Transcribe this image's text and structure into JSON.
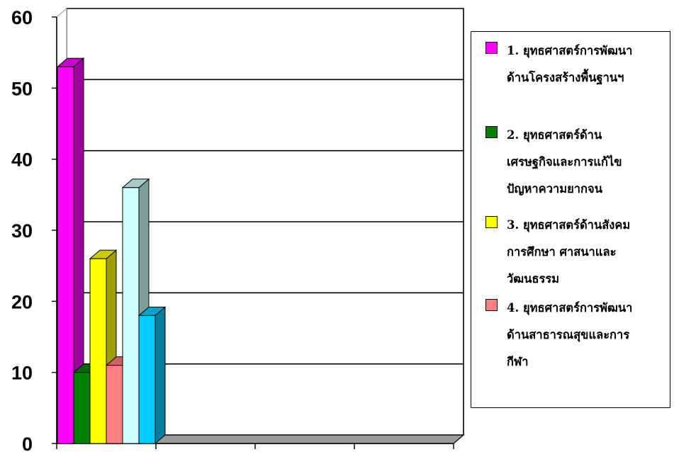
{
  "chart_data": {
    "type": "bar",
    "categories": [
      ""
    ],
    "ylim": [
      0,
      60
    ],
    "yticks": [
      "0",
      "10",
      "20",
      "30",
      "40",
      "50",
      "60"
    ],
    "grid": true,
    "legend_position": "right",
    "series": [
      {
        "name": "1. ยุทธศาสตร์การพัฒนาด้านโครงสร้างพื้นฐานฯ",
        "color": "#ff00ff",
        "values": [
          53
        ]
      },
      {
        "name": "2. ยุทธศาสตร์ด้านเศรษฐกิจและการแก้ไขปัญหาความยากจน",
        "color": "#008000",
        "values": [
          10
        ]
      },
      {
        "name": "3. ยุทธศาสตร์ด้านสังคมการศึกษา ศาสนาและวัฒนธรรม",
        "color": "#ffff00",
        "values": [
          26
        ]
      },
      {
        "name": "4. ยุทธศาสตร์การพัฒนาด้านสาธารณสุขและการกีฬา",
        "color": "#ff8080",
        "values": [
          11
        ]
      },
      {
        "name": "",
        "color": "#ccffff",
        "values": [
          36
        ]
      },
      {
        "name": "",
        "color": "#00ccff",
        "values": [
          18
        ]
      }
    ]
  },
  "legend": {
    "items": [
      {
        "color": "#ff00ff",
        "lines": [
          "1. ยุทธศาสตร์การพัฒนา",
          "ด้านโครงสร้างพื้นฐานฯ"
        ]
      },
      {
        "color": "#008000",
        "lines": [
          "2. ยุทธศาสตร์ด้าน",
          "เศรษฐกิจและการแก้ไข",
          "ปัญหาความยากจน"
        ]
      },
      {
        "color": "#ffff00",
        "lines": [
          "3. ยุทธศาสตร์ด้านสังคม",
          "การศึกษา ศาสนาและ",
          "วัฒนธรรม"
        ]
      },
      {
        "color": "#ff8080",
        "lines": [
          "4. ยุทธศาสตร์การพัฒนา",
          "ด้านสาธารณสุขและการ",
          "กีฬา"
        ]
      }
    ]
  }
}
